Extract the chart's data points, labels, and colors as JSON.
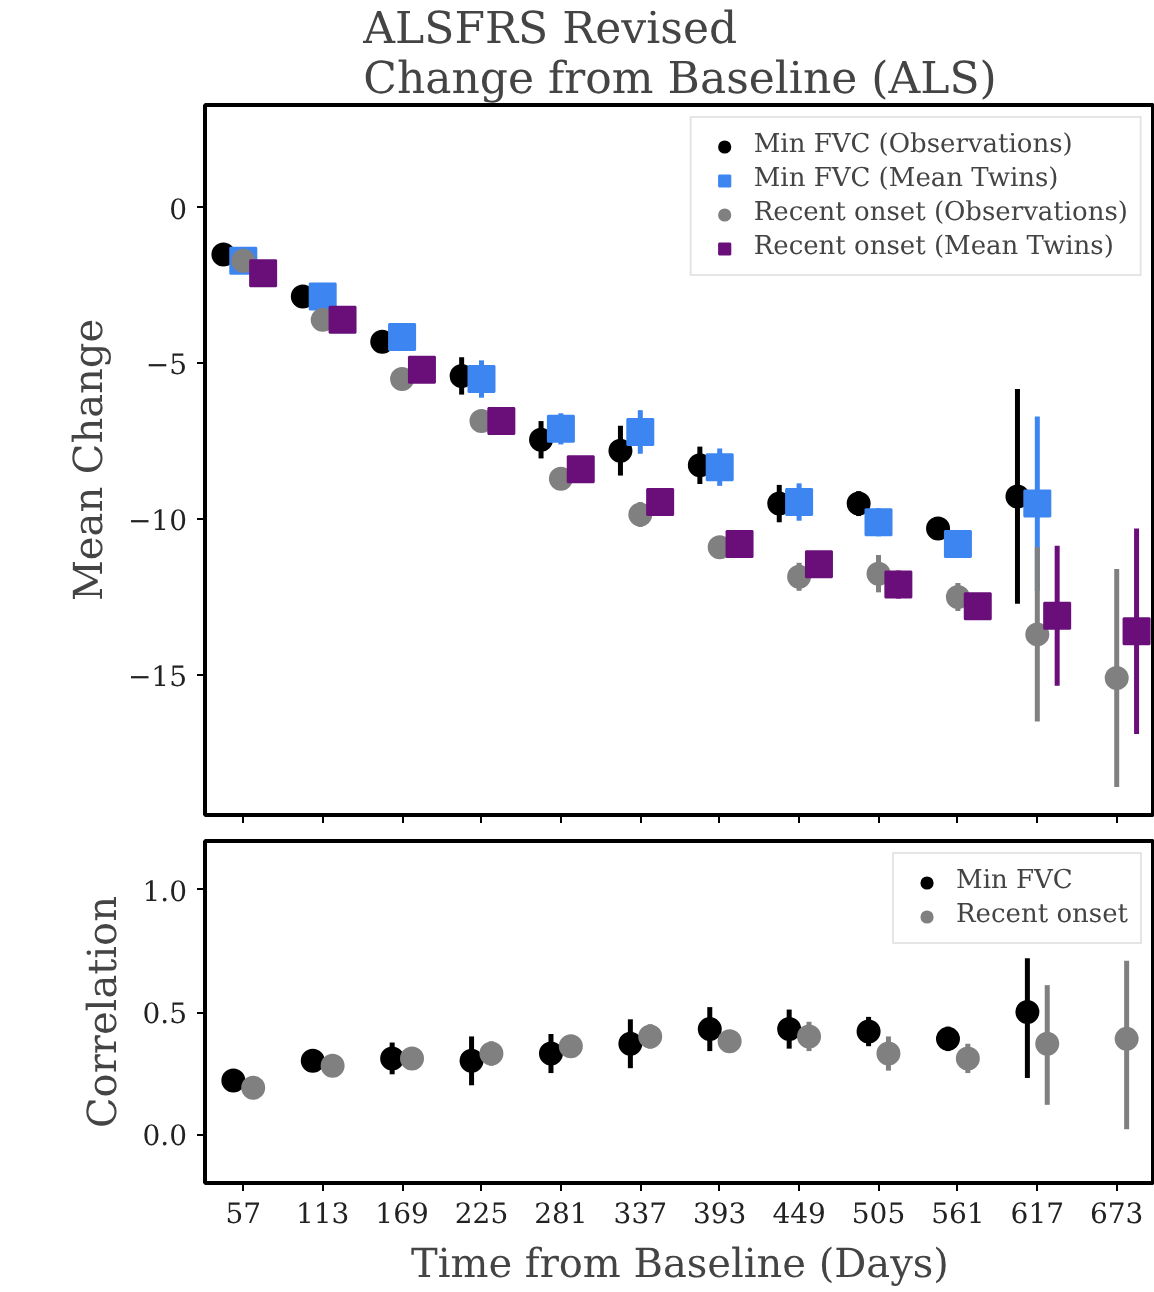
{
  "chart_data": [
    {
      "type": "scatter",
      "title": "ALSFRS Revised\nChange from Baseline (ALS)",
      "ylabel": "Mean Change",
      "xlim": [
        30,
        700
      ],
      "xticks": [
        57,
        113,
        169,
        225,
        281,
        337,
        393,
        449,
        505,
        561,
        617,
        673
      ],
      "ylim": [
        -19.5,
        3.3
      ],
      "yticks": [
        0,
        {
          "value": -5,
          "label": "−5"
        },
        {
          "value": -10,
          "label": "−10"
        },
        {
          "value": -15,
          "label": "−15"
        }
      ],
      "tick_labels": "y",
      "legend": "top right",
      "grid": false,
      "series": [
        {
          "name": "Min FVC (Observations)",
          "color": "#000000",
          "marker": "circle",
          "x": [
            43,
            99,
            155,
            211,
            267,
            323,
            379,
            435,
            491,
            547,
            603
          ],
          "values": [
            -1.5,
            -2.85,
            -4.3,
            -5.4,
            -7.45,
            -7.8,
            -8.27,
            -9.5,
            -9.5,
            -10.3,
            -9.27
          ],
          "errors": [
            null,
            null,
            null,
            0.6,
            0.6,
            0.8,
            0.6,
            0.6,
            0.4,
            0.3,
            3.45
          ]
        },
        {
          "name": "Min FVC (Mean Twins)",
          "color": "#3d85f0",
          "marker": "square",
          "x": [
            57,
            113,
            169,
            225,
            281,
            337,
            393,
            449,
            505,
            561,
            617
          ],
          "values": [
            -1.7,
            -2.85,
            -4.15,
            -5.5,
            -7.1,
            -7.2,
            -8.33,
            -9.45,
            -10.1,
            -10.8,
            -9.5
          ],
          "errors": [
            null,
            null,
            null,
            0.6,
            0.5,
            0.7,
            0.6,
            0.6,
            0.45,
            0.4,
            2.8
          ]
        },
        {
          "name": "Recent onset (Observations)",
          "color": "#808080",
          "marker": "circle",
          "x": [
            57,
            113,
            169,
            225,
            281,
            337,
            393,
            449,
            505,
            561,
            617,
            673
          ],
          "values": [
            -1.7,
            -3.6,
            -5.5,
            -6.85,
            -8.7,
            -9.85,
            -10.9,
            -11.85,
            -11.75,
            -12.5,
            -13.7,
            -15.1
          ],
          "errors": [
            null,
            null,
            null,
            null,
            0.3,
            0.4,
            0.3,
            0.45,
            0.6,
            0.45,
            2.8,
            3.5
          ]
        },
        {
          "name": "Recent onset (Mean Twins)",
          "color": "#6a0f7a",
          "marker": "square",
          "x": [
            71,
            127,
            183,
            239,
            295,
            351,
            407,
            463,
            519,
            575,
            631,
            687
          ],
          "values": [
            -2.1,
            -3.6,
            -5.2,
            -6.85,
            -8.4,
            -9.45,
            -10.8,
            -11.45,
            -12.1,
            -12.8,
            -13.1,
            -13.6
          ],
          "errors": [
            null,
            null,
            null,
            null,
            null,
            0.3,
            0.2,
            0.35,
            0.45,
            0.4,
            2.25,
            3.3
          ]
        }
      ]
    },
    {
      "type": "scatter",
      "ylabel": "Correlation",
      "xlabel": "Time from Baseline (Days)",
      "xlim": [
        30,
        700
      ],
      "xticks": [
        57,
        113,
        169,
        225,
        281,
        337,
        393,
        449,
        505,
        561,
        617,
        673
      ],
      "ylim": [
        -0.2,
        1.2
      ],
      "yticks": [
        {
          "value": 1,
          "label": "1.0"
        },
        0.5,
        {
          "value": 0,
          "label": "0.0"
        }
      ],
      "legend": "top right",
      "grid": false,
      "series": [
        {
          "name": "Min FVC",
          "color": "#000000",
          "marker": "circle",
          "x": [
            50,
            106,
            162,
            218,
            274,
            330,
            386,
            442,
            498,
            554,
            610
          ],
          "values": [
            0.22,
            0.3,
            0.31,
            0.3,
            0.33,
            0.37,
            0.43,
            0.43,
            0.42,
            0.39,
            0.5
          ],
          "errors": [
            0.02,
            0.02,
            0.065,
            0.1,
            0.08,
            0.1,
            0.09,
            0.08,
            0.06,
            0.05,
            [
              0.23,
              0.72
            ]
          ]
        },
        {
          "name": "Recent onset",
          "color": "#808080",
          "marker": "circle",
          "x": [
            64,
            120,
            176,
            232,
            288,
            344,
            400,
            456,
            512,
            568,
            624,
            680
          ],
          "values": [
            0.19,
            0.28,
            0.31,
            0.33,
            0.36,
            0.4,
            0.38,
            0.4,
            0.33,
            0.31,
            0.37,
            0.39
          ],
          "errors": [
            null,
            null,
            null,
            0.05,
            0.03,
            0.05,
            0.04,
            0.06,
            0.07,
            0.06,
            [
              0.12,
              0.61
            ],
            [
              0.02,
              0.71
            ]
          ]
        }
      ]
    }
  ]
}
